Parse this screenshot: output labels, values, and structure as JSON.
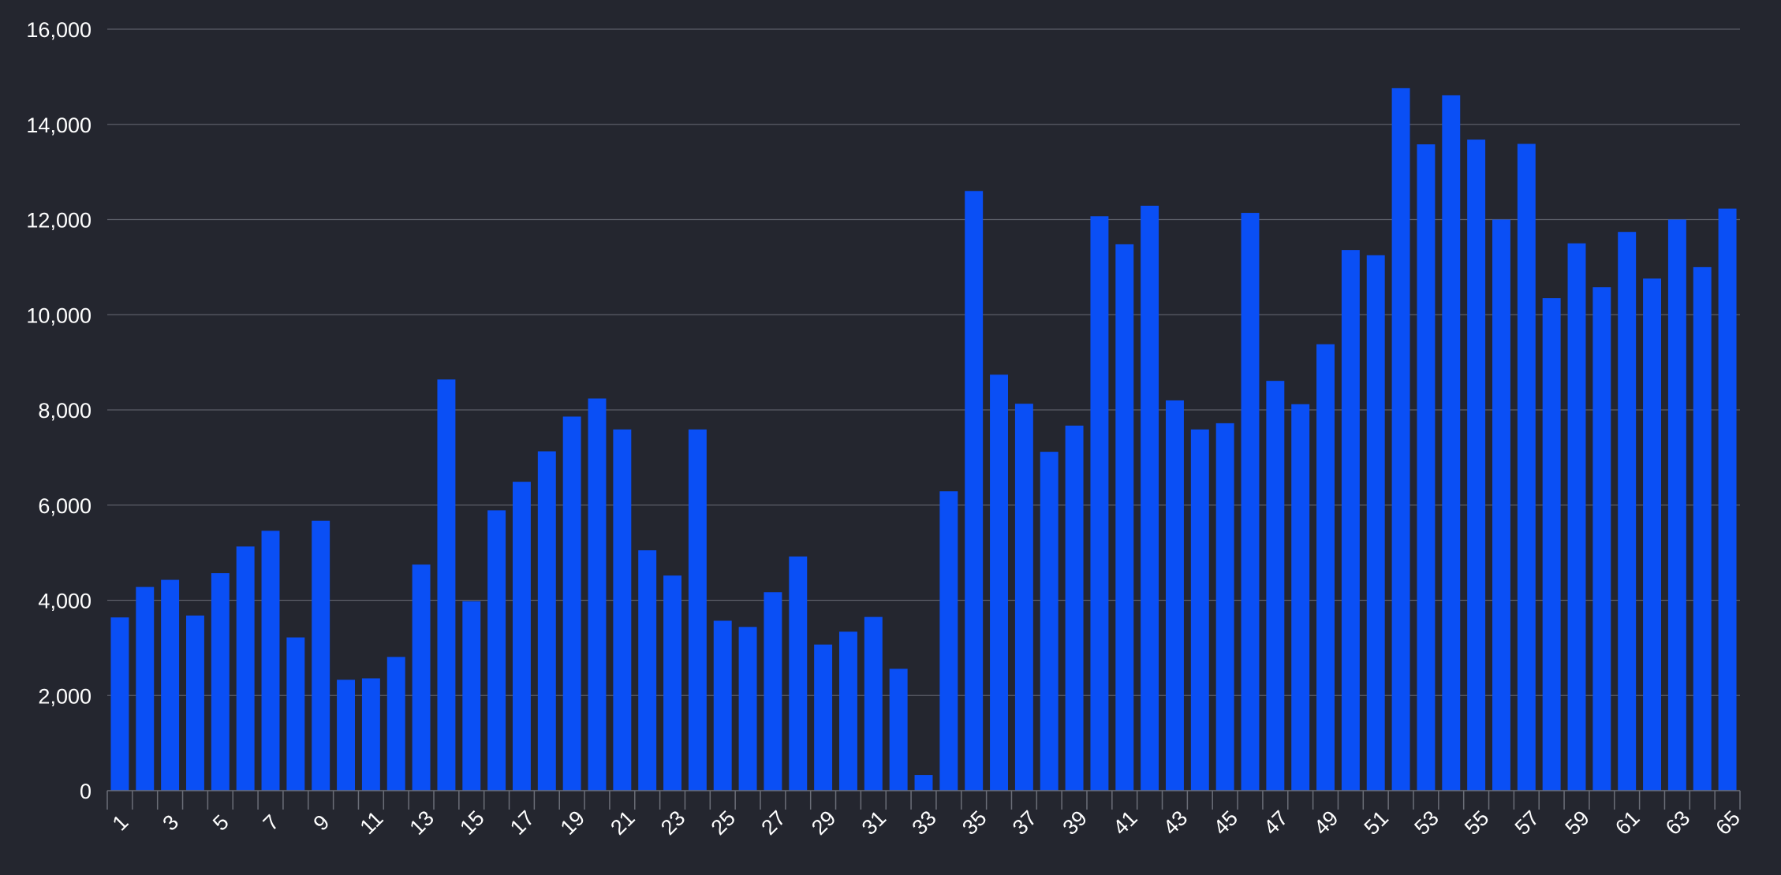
{
  "chart_data": {
    "type": "bar",
    "title": "",
    "xlabel": "",
    "ylabel": "",
    "ylim": [
      0,
      16000
    ],
    "yticks": [
      0,
      2000,
      4000,
      6000,
      8000,
      10000,
      12000,
      14000,
      16000
    ],
    "ytick_labels": [
      "0",
      "2,000",
      "4,000",
      "6,000",
      "8,000",
      "10,000",
      "12,000",
      "14,000",
      "16,000"
    ],
    "grid": true,
    "legend": "none",
    "bar_color": "#0a4ff5",
    "background": "#24262f",
    "categories": [
      "1",
      "2",
      "3",
      "4",
      "5",
      "6",
      "7",
      "8",
      "9",
      "10",
      "11",
      "12",
      "13",
      "14",
      "15",
      "16",
      "17",
      "18",
      "19",
      "20",
      "21",
      "22",
      "23",
      "24",
      "25",
      "26",
      "27",
      "28",
      "29",
      "30",
      "31",
      "32",
      "33",
      "34",
      "35",
      "36",
      "37",
      "38",
      "39",
      "40",
      "41",
      "42",
      "43",
      "44",
      "45",
      "46",
      "47",
      "48",
      "49",
      "50",
      "51",
      "52",
      "53",
      "54",
      "55",
      "56",
      "57",
      "58",
      "59",
      "60",
      "61",
      "62",
      "63",
      "64",
      "65"
    ],
    "xtick_labels": [
      "1",
      "3",
      "5",
      "7",
      "9",
      "11",
      "13",
      "15",
      "17",
      "19",
      "21",
      "23",
      "25",
      "27",
      "29",
      "31",
      "33",
      "35",
      "37",
      "39",
      "41",
      "43",
      "45",
      "47",
      "49",
      "51",
      "53",
      "55",
      "57",
      "59",
      "61",
      "63",
      "65"
    ],
    "values": [
      3640,
      4280,
      4430,
      3680,
      4570,
      5130,
      5460,
      3220,
      5670,
      2330,
      2360,
      2810,
      4750,
      8640,
      3980,
      5890,
      6490,
      7130,
      7860,
      8240,
      7590,
      5050,
      4520,
      7590,
      3570,
      3440,
      4170,
      4920,
      3070,
      3340,
      3650,
      2560,
      330,
      6290,
      12600,
      8740,
      8130,
      7120,
      7670,
      12070,
      11480,
      12290,
      8200,
      7590,
      7720,
      12140,
      8610,
      8120,
      9380,
      11360,
      11250,
      14760,
      13580,
      14610,
      13680,
      12000,
      13590,
      10350,
      11500,
      10580,
      11740,
      10760,
      12000,
      11000,
      12230
    ]
  }
}
